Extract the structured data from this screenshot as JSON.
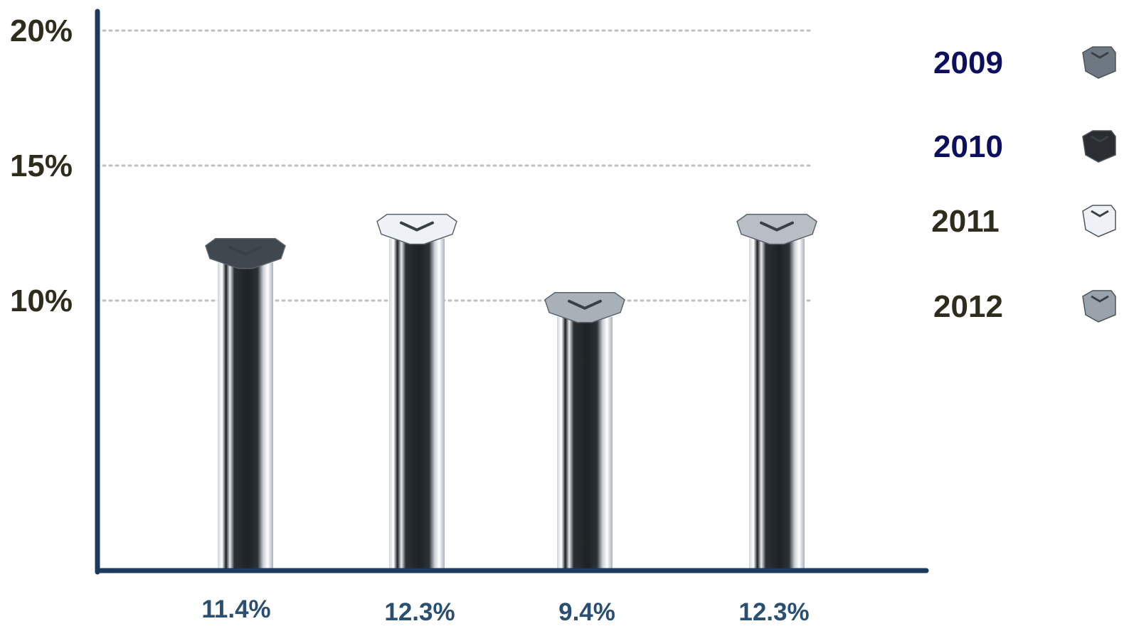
{
  "chart_data": {
    "type": "bar",
    "categories": [
      "2009",
      "2010",
      "2011",
      "2012"
    ],
    "values": [
      11.4,
      12.3,
      9.4,
      12.3
    ],
    "data_labels": [
      "11.4%",
      "12.3%",
      "9.4%",
      "12.3%"
    ],
    "y_ticks": [
      {
        "value": 10,
        "label": "10%"
      },
      {
        "value": 15,
        "label": "15%"
      },
      {
        "value": 20,
        "label": "20%"
      }
    ],
    "ylim": [
      0,
      22
    ],
    "grid": true,
    "legend_position": "right",
    "legend": [
      {
        "label": "2009",
        "text_color": "#0b0f5e",
        "cap": "#6e7882"
      },
      {
        "label": "2010",
        "text_color": "#0b0f5e",
        "cap": "#2a2e33"
      },
      {
        "label": "2011",
        "text_color": "#2e2c1c",
        "cap": "#eef2f6"
      },
      {
        "label": "2012",
        "text_color": "#2e2c1c",
        "cap": "#9aa3ab"
      }
    ],
    "bar_caps": [
      "#3f474f",
      "#eef2f6",
      "#a9b1b8",
      "#b8bec4"
    ],
    "colors": {
      "axis": "#1c3a5e",
      "grid": "#bfbfbf",
      "tick_text": "#2e2c1c",
      "data_label_text": "#2a4f70"
    }
  }
}
